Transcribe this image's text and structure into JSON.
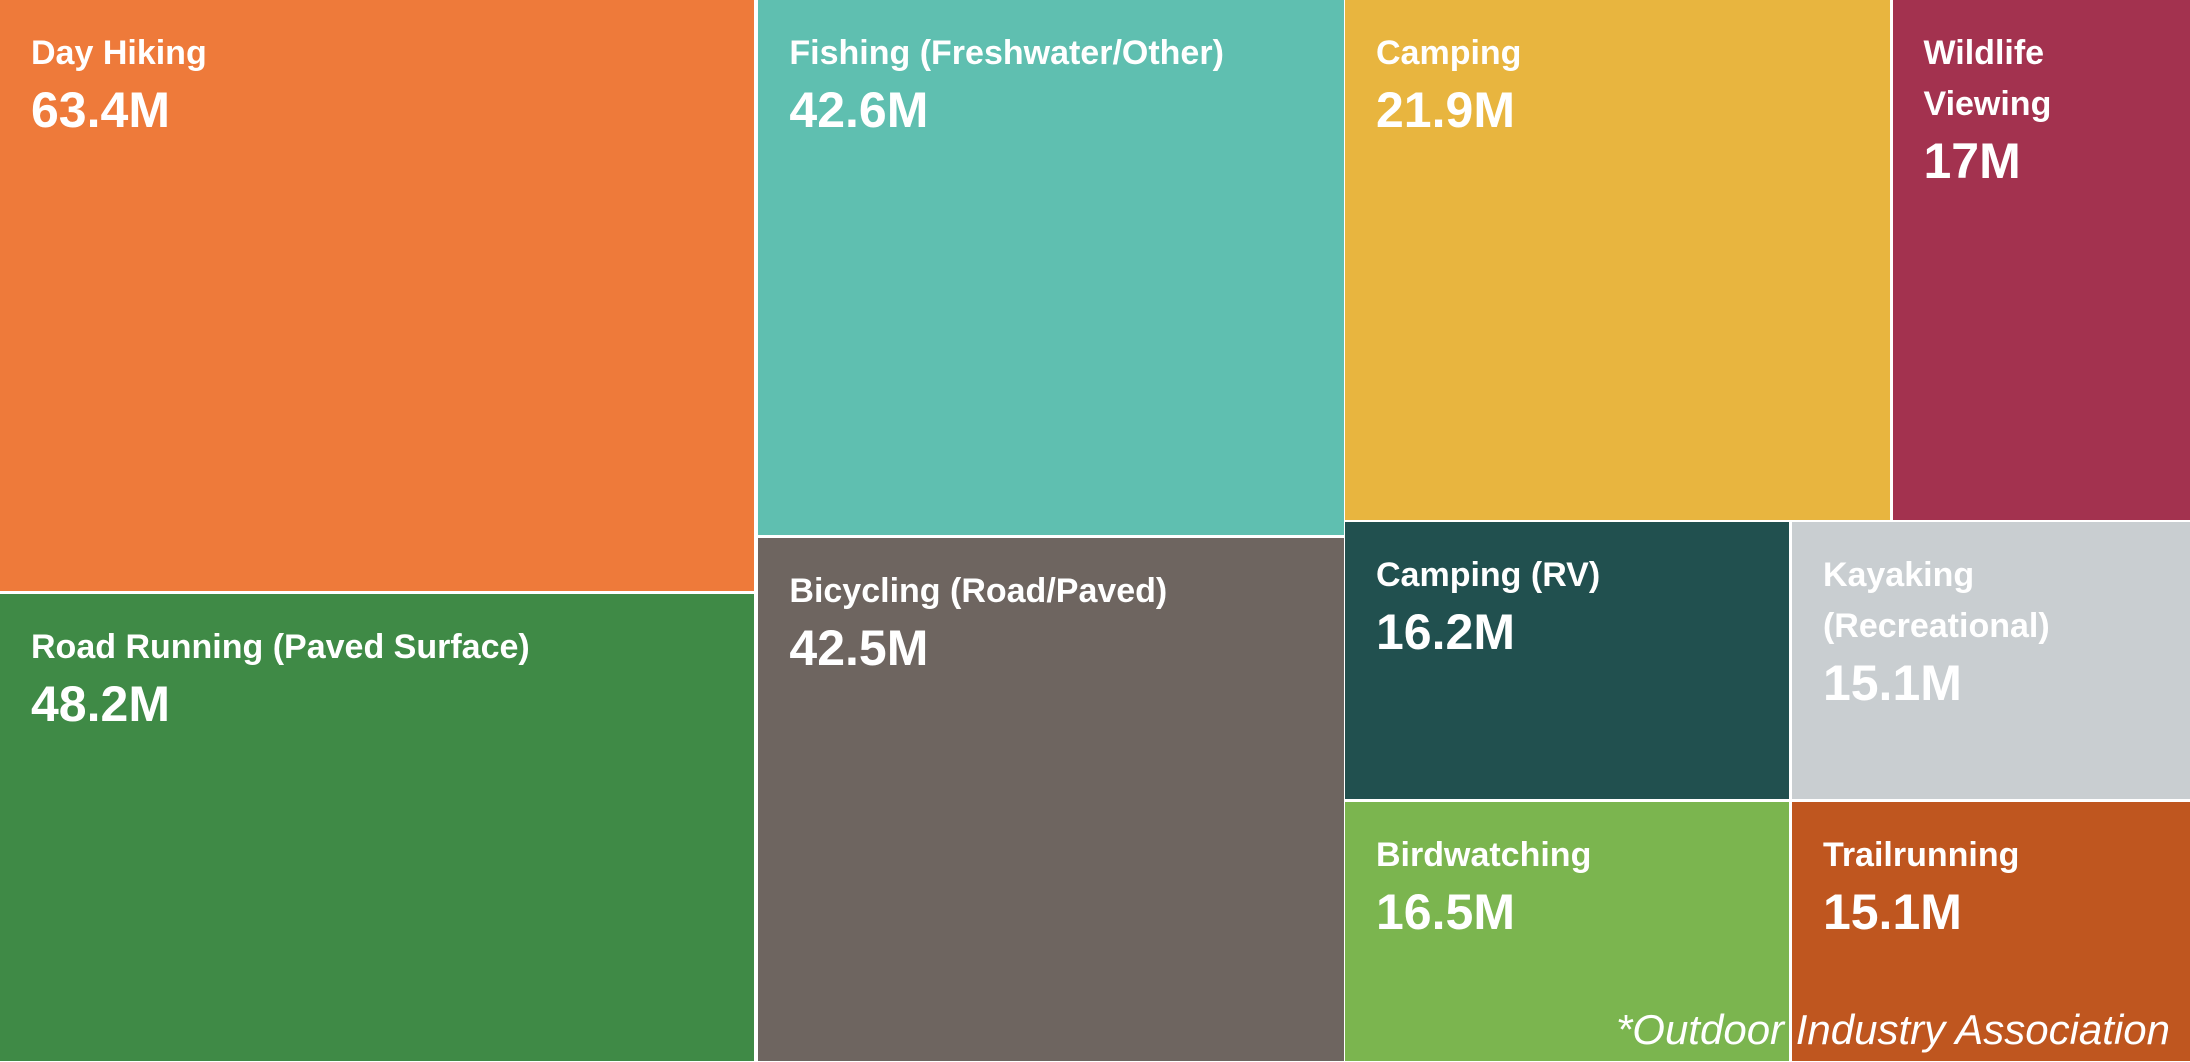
{
  "chart_data": {
    "type": "treemap",
    "categories": [
      "Day Hiking",
      "Road Running (Paved Surface)",
      "Fishing (Freshwater/Other)",
      "Bicycling (Road/Paved)",
      "Camping",
      "Wildlife Viewing",
      "Camping (RV)",
      "Kayaking (Recreational)",
      "Birdwatching",
      "Trailrunning"
    ],
    "values": [
      63.4,
      48.2,
      42.6,
      42.5,
      21.9,
      17,
      16.2,
      15.1,
      16.5,
      15.1
    ],
    "value_labels": [
      "63.4M",
      "48.2M",
      "42.6M",
      "42.5M",
      "21.9M",
      "17M",
      "16.2M",
      "15.1M",
      "16.5M",
      "15.1M"
    ],
    "colors": [
      "#ee7a3a",
      "#3f8a46",
      "#5fbfb0",
      "#6e6560",
      "#e8b53f",
      "#a3324f",
      "#21504f",
      "#c9ced1",
      "#7bb54f",
      "#bf561f"
    ],
    "note": "*Outdoor Industry Association"
  }
}
